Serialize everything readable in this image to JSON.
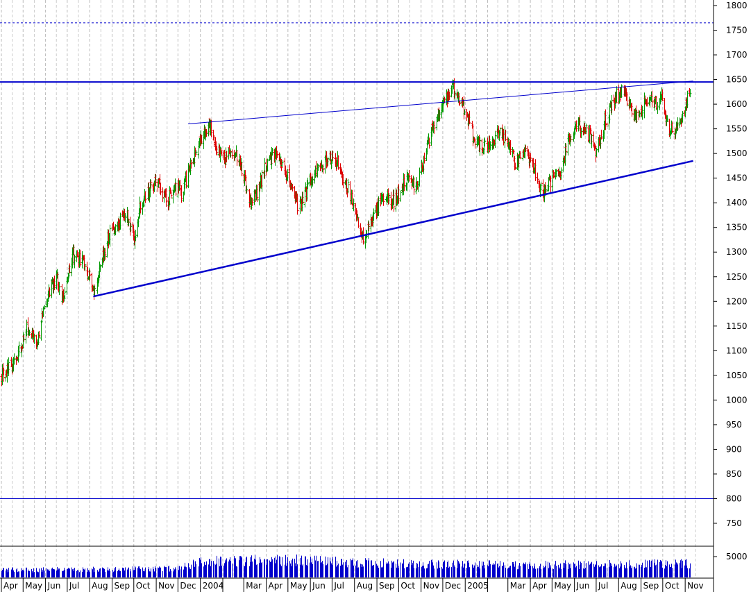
{
  "chart_data": [
    {
      "type": "ohlc",
      "panel": "price",
      "title": "",
      "xlabel": "",
      "ylabel": "",
      "y_axis_position": "right",
      "ylim": [
        710,
        1810
      ],
      "y_ticks": [
        1800,
        1750,
        1700,
        1650,
        1600,
        1550,
        1500,
        1450,
        1400,
        1350,
        1300,
        1250,
        1200,
        1150,
        1100,
        1050,
        1000,
        950,
        900,
        850,
        800,
        750
      ],
      "grid": "vertical dashed",
      "x_start": "2003-04-01",
      "x_end": "2005-11-08",
      "month_ticks": [
        {
          "date": "2003-04-01",
          "label": "Apr"
        },
        {
          "date": "2003-05-01",
          "label": "May"
        },
        {
          "date": "2003-06-01",
          "label": "Jun"
        },
        {
          "date": "2003-07-01",
          "label": "Jul"
        },
        {
          "date": "2003-08-01",
          "label": "Aug"
        },
        {
          "date": "2003-09-01",
          "label": "Sep"
        },
        {
          "date": "2003-10-01",
          "label": "Oct"
        },
        {
          "date": "2003-11-01",
          "label": "Nov"
        },
        {
          "date": "2003-12-01",
          "label": "Dec"
        },
        {
          "date": "2004-01-01",
          "label": "2004"
        },
        {
          "date": "2004-02-01",
          "label": ""
        },
        {
          "date": "2004-03-01",
          "label": "Mar"
        },
        {
          "date": "2004-04-01",
          "label": "Apr"
        },
        {
          "date": "2004-05-01",
          "label": "May"
        },
        {
          "date": "2004-06-01",
          "label": "Jun"
        },
        {
          "date": "2004-07-01",
          "label": "Jul"
        },
        {
          "date": "2004-08-01",
          "label": "Aug"
        },
        {
          "date": "2004-09-01",
          "label": "Sep"
        },
        {
          "date": "2004-10-01",
          "label": "Oct"
        },
        {
          "date": "2004-11-01",
          "label": "Nov"
        },
        {
          "date": "2004-12-01",
          "label": "Dec"
        },
        {
          "date": "2005-01-01",
          "label": "2005"
        },
        {
          "date": "2005-02-01",
          "label": ""
        },
        {
          "date": "2005-03-01",
          "label": "Mar"
        },
        {
          "date": "2005-04-01",
          "label": "Apr"
        },
        {
          "date": "2005-05-01",
          "label": "May"
        },
        {
          "date": "2005-06-01",
          "label": "Jun"
        },
        {
          "date": "2005-07-01",
          "label": "Jul"
        },
        {
          "date": "2005-08-01",
          "label": "Aug"
        },
        {
          "date": "2005-09-01",
          "label": "Sep"
        },
        {
          "date": "2005-10-01",
          "label": "Oct"
        },
        {
          "date": "2005-11-01",
          "label": "Nov"
        }
      ],
      "price_path": [
        [
          "2003-04-01",
          1050
        ],
        [
          "2003-04-20",
          1080
        ],
        [
          "2003-05-08",
          1150
        ],
        [
          "2003-05-20",
          1120
        ],
        [
          "2003-06-01",
          1200
        ],
        [
          "2003-06-15",
          1250
        ],
        [
          "2003-06-25",
          1210
        ],
        [
          "2003-07-08",
          1300
        ],
        [
          "2003-07-20",
          1280
        ],
        [
          "2003-08-01",
          1250
        ],
        [
          "2003-08-06",
          1215
        ],
        [
          "2003-08-20",
          1300
        ],
        [
          "2003-09-05",
          1360
        ],
        [
          "2003-09-20",
          1380
        ],
        [
          "2003-10-01",
          1330
        ],
        [
          "2003-10-10",
          1400
        ],
        [
          "2003-10-25",
          1430
        ],
        [
          "2003-11-05",
          1440
        ],
        [
          "2003-11-15",
          1395
        ],
        [
          "2003-11-25",
          1430
        ],
        [
          "2003-12-05",
          1420
        ],
        [
          "2003-12-20",
          1480
        ],
        [
          "2004-01-05",
          1540
        ],
        [
          "2004-01-15",
          1555
        ],
        [
          "2004-01-25",
          1500
        ],
        [
          "2004-02-05",
          1490
        ],
        [
          "2004-02-15",
          1510
        ],
        [
          "2004-02-28",
          1470
        ],
        [
          "2004-03-10",
          1400
        ],
        [
          "2004-03-20",
          1420
        ],
        [
          "2004-04-01",
          1480
        ],
        [
          "2004-04-10",
          1500
        ],
        [
          "2004-04-25",
          1470
        ],
        [
          "2004-05-05",
          1440
        ],
        [
          "2004-05-15",
          1390
        ],
        [
          "2004-05-25",
          1420
        ],
        [
          "2004-06-05",
          1460
        ],
        [
          "2004-06-20",
          1480
        ],
        [
          "2004-07-02",
          1500
        ],
        [
          "2004-07-12",
          1470
        ],
        [
          "2004-07-25",
          1420
        ],
        [
          "2004-08-05",
          1370
        ],
        [
          "2004-08-12",
          1325
        ],
        [
          "2004-08-25",
          1370
        ],
        [
          "2004-09-10",
          1410
        ],
        [
          "2004-09-25",
          1400
        ],
        [
          "2004-10-10",
          1450
        ],
        [
          "2004-10-25",
          1430
        ],
        [
          "2004-11-10",
          1520
        ],
        [
          "2004-11-25",
          1580
        ],
        [
          "2004-12-05",
          1610
        ],
        [
          "2004-12-15",
          1630
        ],
        [
          "2004-12-25",
          1605
        ],
        [
          "2005-01-03",
          1580
        ],
        [
          "2005-01-12",
          1530
        ],
        [
          "2005-01-25",
          1510
        ],
        [
          "2005-02-05",
          1520
        ],
        [
          "2005-02-15",
          1540
        ],
        [
          "2005-02-28",
          1530
        ],
        [
          "2005-03-10",
          1480
        ],
        [
          "2005-03-25",
          1500
        ],
        [
          "2005-04-05",
          1470
        ],
        [
          "2005-04-18",
          1420
        ],
        [
          "2005-04-28",
          1440
        ],
        [
          "2005-05-10",
          1460
        ],
        [
          "2005-05-25",
          1530
        ],
        [
          "2005-06-05",
          1560
        ],
        [
          "2005-06-20",
          1540
        ],
        [
          "2005-07-02",
          1500
        ],
        [
          "2005-07-12",
          1560
        ],
        [
          "2005-07-25",
          1610
        ],
        [
          "2005-08-05",
          1630
        ],
        [
          "2005-08-15",
          1600
        ],
        [
          "2005-08-28",
          1570
        ],
        [
          "2005-09-10",
          1620
        ],
        [
          "2005-09-20",
          1600
        ],
        [
          "2005-09-30",
          1610
        ],
        [
          "2005-10-08",
          1560
        ],
        [
          "2005-10-18",
          1540
        ],
        [
          "2005-10-28",
          1570
        ],
        [
          "2005-11-03",
          1610
        ],
        [
          "2005-11-08",
          1635
        ]
      ],
      "up_color": "#009900",
      "down_color": "#dd0000",
      "reference_lines": [
        {
          "value": 1645,
          "style": "solid",
          "color": "#0000cc"
        },
        {
          "value": 1765,
          "style": "dotted",
          "color": "#0000cc"
        },
        {
          "value": 800,
          "style": "solid",
          "color": "#0000cc"
        }
      ],
      "trendlines": [
        {
          "from": [
            "2003-08-06",
            1210
          ],
          "to": [
            "2005-11-12",
            1485
          ],
          "color": "#0000cc",
          "weight": "thick"
        },
        {
          "from": [
            "2003-12-15",
            1560
          ],
          "to": [
            "2005-11-12",
            1647
          ],
          "color": "#0000cc",
          "weight": "thin"
        }
      ]
    },
    {
      "type": "bar",
      "panel": "volume",
      "xlabel": "",
      "ylabel": "",
      "y_axis_position": "right",
      "ylim": [
        0,
        7000
      ],
      "y_ticks": [
        5000
      ],
      "bar_color": "#0000cc",
      "volume_path": [
        [
          "2003-04-01",
          1800
        ],
        [
          "2003-08-01",
          1900
        ],
        [
          "2003-12-01",
          2200
        ],
        [
          "2004-01-01",
          3800
        ],
        [
          "2004-05-01",
          4200
        ],
        [
          "2004-08-01",
          3500
        ],
        [
          "2004-12-01",
          3200
        ],
        [
          "2005-03-01",
          3000
        ],
        [
          "2005-07-01",
          3100
        ],
        [
          "2005-11-08",
          3300
        ]
      ]
    }
  ]
}
